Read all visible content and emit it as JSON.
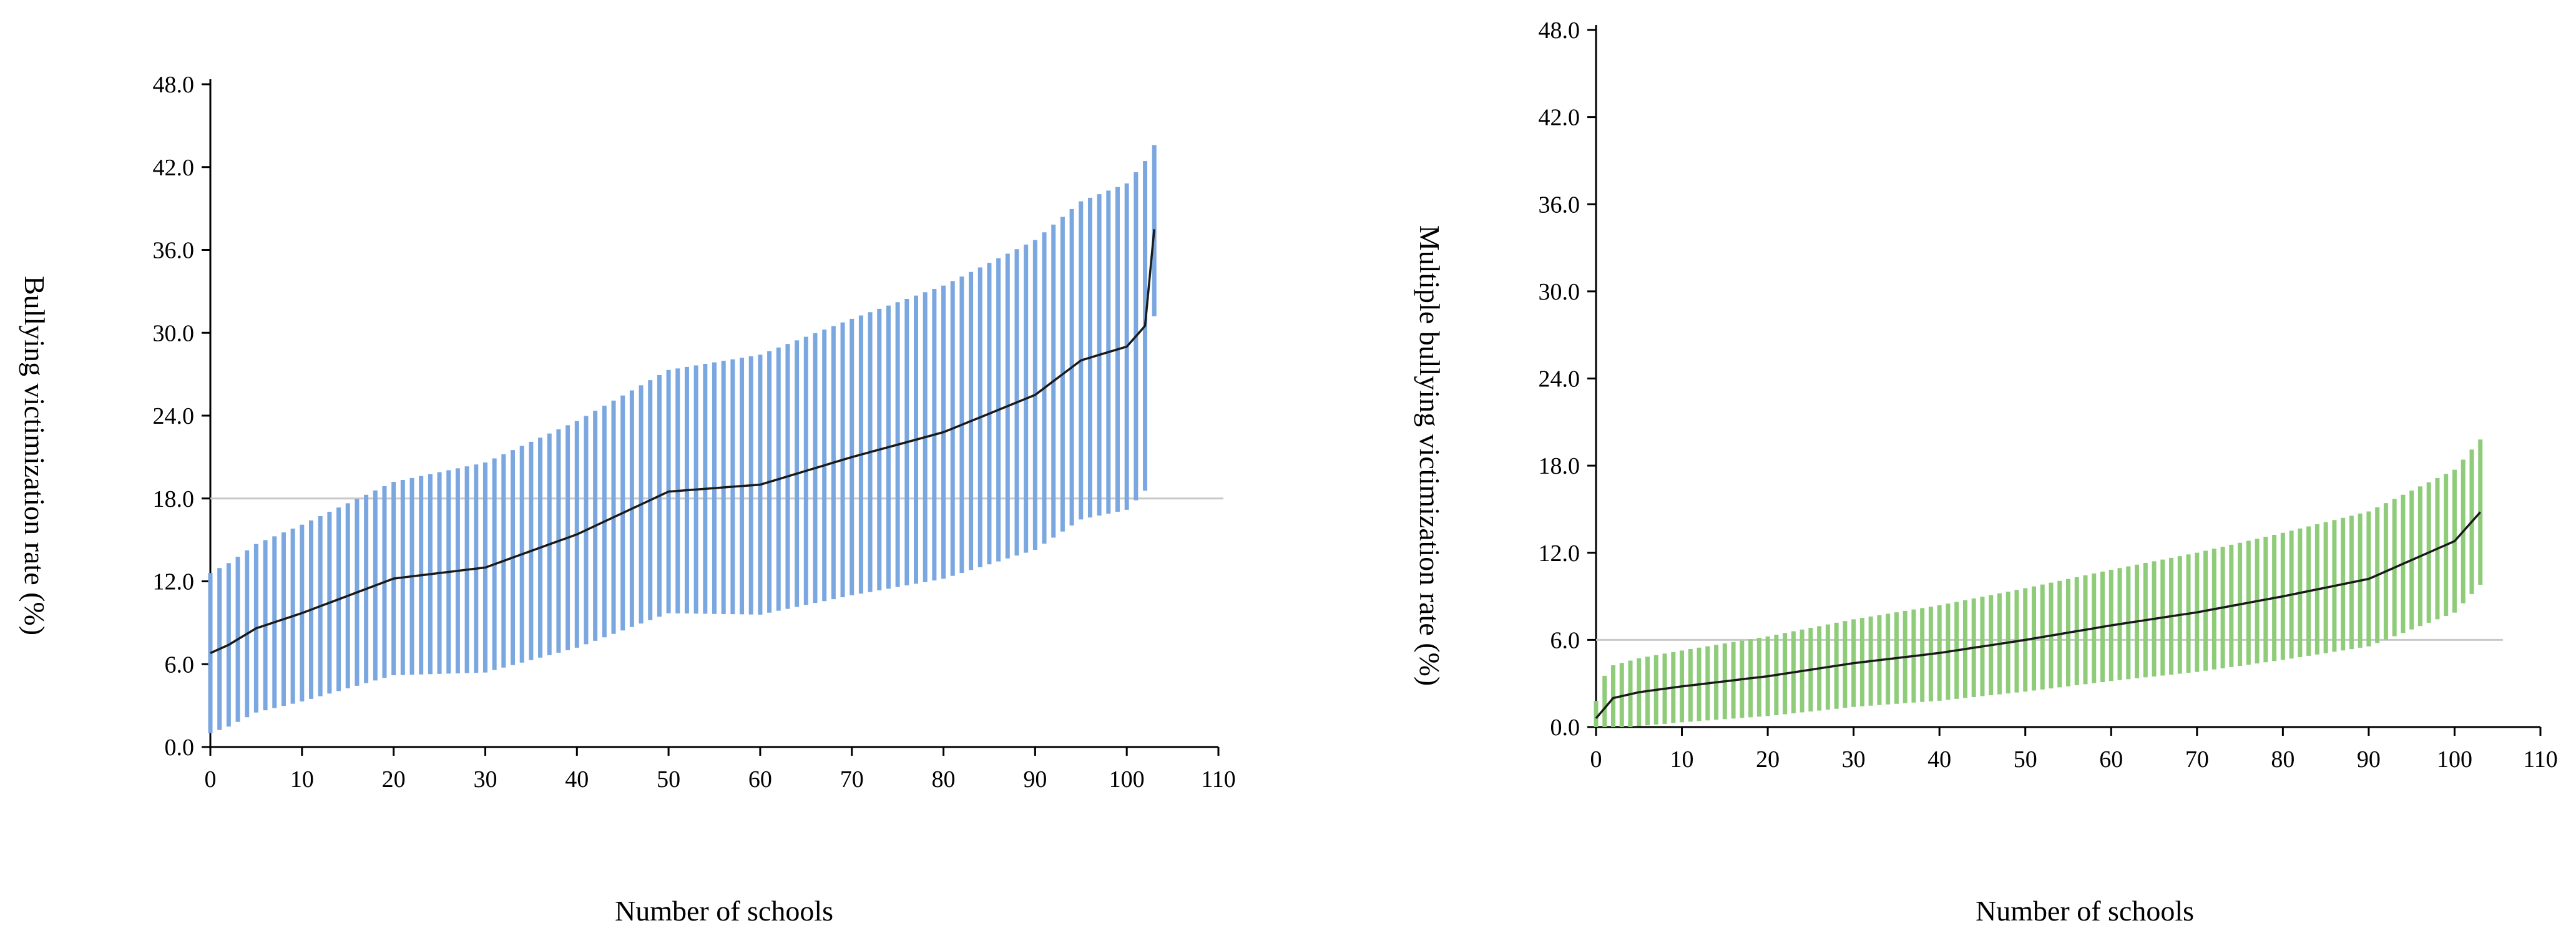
{
  "chart_data": [
    {
      "type": "line",
      "ylabel": "Bullying victimization rate (%)",
      "xlabel": "Number of schools",
      "yticks": [
        "0.0",
        "6.0",
        "12.0",
        "18.0",
        "24.0",
        "30.0",
        "36.0",
        "42.0",
        "48.0"
      ],
      "xticks": [
        "0",
        "10",
        "20",
        "30",
        "40",
        "50",
        "60",
        "70",
        "80",
        "90",
        "100",
        "110"
      ],
      "ylim": [
        0,
        48
      ],
      "xlim": [
        0,
        110
      ],
      "reference_line": 18.0,
      "n_schools": 104,
      "ci_half_width": [
        5.8,
        12
      ],
      "last_point": {
        "x": 103,
        "value": 37.5,
        "lower": 31.2,
        "upper": 43.6
      },
      "color": "#7BA7E0",
      "line_color": "#1a1a1a",
      "series": [
        {
          "name": "rate",
          "anchors": [
            [
              0,
              6.8
            ],
            [
              2,
              7.4
            ],
            [
              5,
              8.6
            ],
            [
              10,
              9.7
            ],
            [
              20,
              12.2
            ],
            [
              30,
              13.0
            ],
            [
              40,
              15.4
            ],
            [
              50,
              18.5
            ],
            [
              60,
              19.0
            ],
            [
              70,
              21.0
            ],
            [
              80,
              22.8
            ],
            [
              90,
              25.5
            ],
            [
              95,
              28.0
            ],
            [
              100,
              29.0
            ],
            [
              102,
              30.5
            ],
            [
              103,
              37.5
            ]
          ]
        }
      ]
    },
    {
      "type": "line",
      "ylabel": "Multiple bullying victimization rate (%)",
      "xlabel": "Number of schools",
      "yticks": [
        "0.0",
        "6.0",
        "12.0",
        "18.0",
        "24.0",
        "30.0",
        "36.0",
        "42.0",
        "48.0"
      ],
      "xticks": [
        "0",
        "10",
        "20",
        "30",
        "40",
        "50",
        "60",
        "70",
        "80",
        "90",
        "100",
        "110"
      ],
      "ylim": [
        0,
        48
      ],
      "xlim": [
        0,
        110
      ],
      "reference_line": 6.0,
      "n_schools": 104,
      "ci_half_width": [
        2.2,
        5
      ],
      "first_point": {
        "x": 0,
        "value": 0.6,
        "lower": 0.0,
        "upper": 1.8
      },
      "color": "#8FCC7A",
      "line_color": "#1a1a1a",
      "series": [
        {
          "name": "rate",
          "anchors": [
            [
              0,
              0.6
            ],
            [
              2,
              2.0
            ],
            [
              5,
              2.4
            ],
            [
              10,
              2.8
            ],
            [
              20,
              3.5
            ],
            [
              30,
              4.4
            ],
            [
              40,
              5.1
            ],
            [
              50,
              6.0
            ],
            [
              60,
              7.0
            ],
            [
              70,
              7.9
            ],
            [
              80,
              9.0
            ],
            [
              90,
              10.2
            ],
            [
              95,
              11.5
            ],
            [
              100,
              12.8
            ],
            [
              103,
              14.8
            ]
          ]
        }
      ]
    }
  ]
}
